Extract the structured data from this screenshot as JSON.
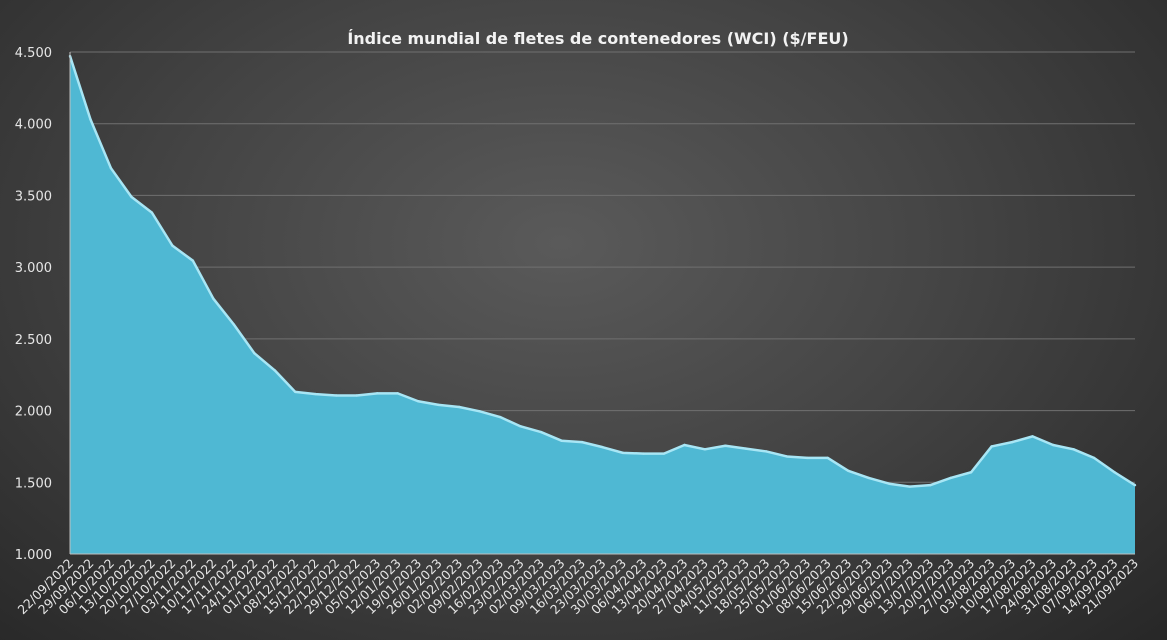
{
  "chart_data": {
    "type": "area",
    "title": "Índice mundial de fletes de contenedores (WCI) ($/FEU)",
    "xlabel": "",
    "ylabel": "",
    "ylim": [
      1000,
      4500
    ],
    "yticks": [
      1000,
      1500,
      2000,
      2500,
      3000,
      3500,
      4000,
      4500
    ],
    "ytick_labels": [
      "1.000",
      "1.500",
      "2.000",
      "2.500",
      "3.000",
      "3.500",
      "4.000",
      "4.500"
    ],
    "grid": true,
    "legend": "none",
    "colors": {
      "area": "#4fb8d3",
      "line": "#a8e6f5",
      "grid": "#707070",
      "axis": "#bfbfbf"
    },
    "x": [
      "22/09/2022",
      "29/09/2022",
      "06/10/2022",
      "13/10/2022",
      "20/10/2022",
      "27/10/2022",
      "03/11/2022",
      "10/11/2022",
      "17/11/2022",
      "24/11/2022",
      "01/12/2022",
      "08/12/2022",
      "15/12/2022",
      "22/12/2022",
      "29/12/2022",
      "05/01/2023",
      "12/01/2023",
      "19/01/2023",
      "26/01/2023",
      "02/02/2023",
      "09/02/2023",
      "16/02/2023",
      "23/02/2023",
      "02/03/2023",
      "09/03/2023",
      "16/03/2023",
      "23/03/2023",
      "30/03/2023",
      "06/04/2023",
      "13/04/2023",
      "20/04/2023",
      "27/04/2023",
      "04/05/2023",
      "11/05/2023",
      "18/05/2023",
      "25/05/2023",
      "01/06/2023",
      "08/06/2023",
      "15/06/2023",
      "22/06/2023",
      "29/06/2023",
      "06/07/2023",
      "13/07/2023",
      "20/07/2023",
      "27/07/2023",
      "03/08/2023",
      "10/08/2023",
      "17/08/2023",
      "24/08/2023",
      "31/08/2023",
      "07/09/2023",
      "14/09/2023",
      "21/09/2023"
    ],
    "series": [
      {
        "values": [
          4472,
          4030,
          3690,
          3490,
          3380,
          3150,
          3045,
          2780,
          2600,
          2400,
          2280,
          2130,
          2115,
          2105,
          2105,
          2120,
          2120,
          2065,
          2040,
          2025,
          1995,
          1955,
          1890,
          1850,
          1790,
          1780,
          1745,
          1705,
          1700,
          1700,
          1760,
          1730,
          1755,
          1735,
          1715,
          1680,
          1670,
          1670,
          1580,
          1530,
          1490,
          1470,
          1480,
          1530,
          1570,
          1750,
          1780,
          1820,
          1760,
          1730,
          1670,
          1570,
          1480
        ]
      }
    ]
  }
}
